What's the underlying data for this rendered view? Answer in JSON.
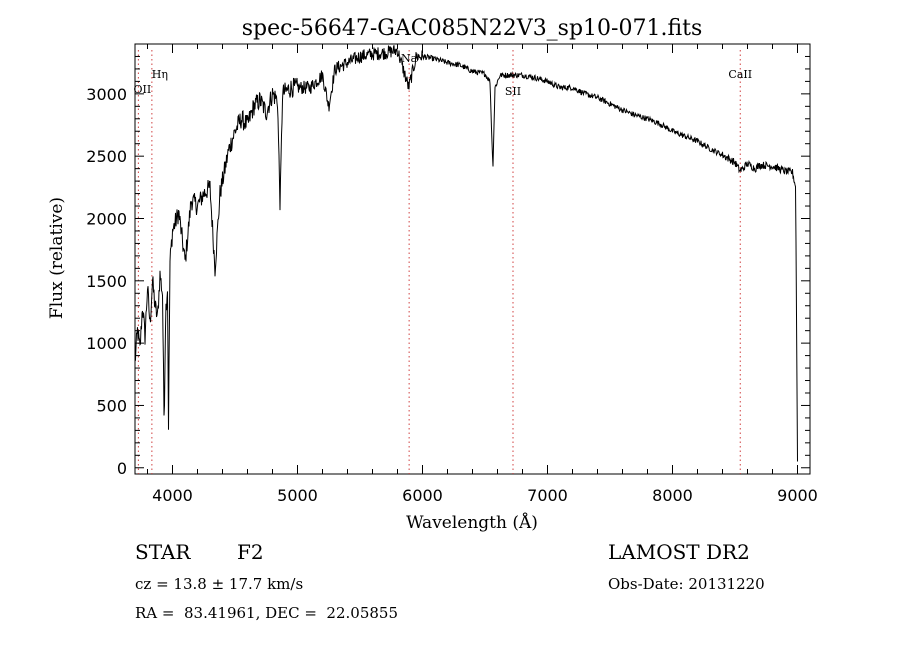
{
  "chart_data": {
    "type": "line",
    "title": "spec-56647-GAC085N22V3_sp10-071.fits",
    "xlabel": "Wavelength (Å)",
    "ylabel": "Flux (relative)",
    "xlim": [
      3700,
      9100
    ],
    "ylim": [
      -50,
      3400
    ],
    "xticks": [
      4000,
      5000,
      6000,
      7000,
      8000,
      9000
    ],
    "yticks": [
      0,
      500,
      1000,
      1500,
      2000,
      2500,
      3000
    ],
    "spectrum": {
      "x": [
        3700,
        3720,
        3740,
        3760,
        3780,
        3800,
        3820,
        3840,
        3860,
        3880,
        3900,
        3920,
        3933,
        3945,
        3960,
        3968,
        3980,
        4000,
        4050,
        4101,
        4150,
        4200,
        4250,
        4300,
        4340,
        4380,
        4450,
        4500,
        4550,
        4600,
        4650,
        4700,
        4750,
        4800,
        4840,
        4861,
        4880,
        4950,
        5000,
        5100,
        5200,
        5250,
        5300,
        5400,
        5500,
        5600,
        5700,
        5800,
        5890,
        5950,
        6000,
        6100,
        6200,
        6300,
        6400,
        6500,
        6540,
        6563,
        6580,
        6620,
        6700,
        6800,
        6900,
        7000,
        7100,
        7200,
        7300,
        7400,
        7500,
        7600,
        7700,
        7800,
        7900,
        8000,
        8100,
        8200,
        8300,
        8400,
        8498,
        8542,
        8600,
        8662,
        8700,
        8800,
        8900,
        8960,
        8985,
        9000
      ],
      "y": [
        850,
        1100,
        950,
        1300,
        1050,
        1450,
        1150,
        1500,
        1300,
        1200,
        1550,
        1400,
        350,
        1250,
        1450,
        350,
        1650,
        1900,
        2050,
        1650,
        2150,
        2100,
        2200,
        2250,
        1600,
        2200,
        2550,
        2700,
        2800,
        2750,
        2900,
        2950,
        2850,
        3000,
        2950,
        2100,
        3000,
        3050,
        3050,
        3050,
        3150,
        2900,
        3200,
        3250,
        3300,
        3320,
        3330,
        3350,
        3050,
        3300,
        3300,
        3280,
        3250,
        3230,
        3180,
        3160,
        3100,
        2400,
        3050,
        3150,
        3150,
        3150,
        3130,
        3100,
        3050,
        3050,
        3000,
        2970,
        2920,
        2870,
        2830,
        2800,
        2760,
        2700,
        2660,
        2620,
        2560,
        2510,
        2450,
        2380,
        2440,
        2400,
        2430,
        2420,
        2380,
        2370,
        2250,
        50
      ]
    },
    "lines": [
      {
        "label": "Hη",
        "wavelength": 3835
      },
      {
        "label": "OII",
        "wavelength": 3727
      },
      {
        "label": "Na",
        "wavelength": 5893
      },
      {
        "label": "SII",
        "wavelength": 6724
      },
      {
        "label": "CaII",
        "wavelength": 8542
      }
    ]
  },
  "info": {
    "object_type": "STAR",
    "subclass": "F2",
    "survey": "LAMOST DR2",
    "cz_line": "cz = 13.8 ± 17.7 km/s",
    "obs_date_line": "Obs-Date: 20131220",
    "coords_line": "RA =  83.41961, DEC =  22.05855"
  },
  "colors": {
    "spectrum": "#000000",
    "line_markers": "#d04040"
  }
}
